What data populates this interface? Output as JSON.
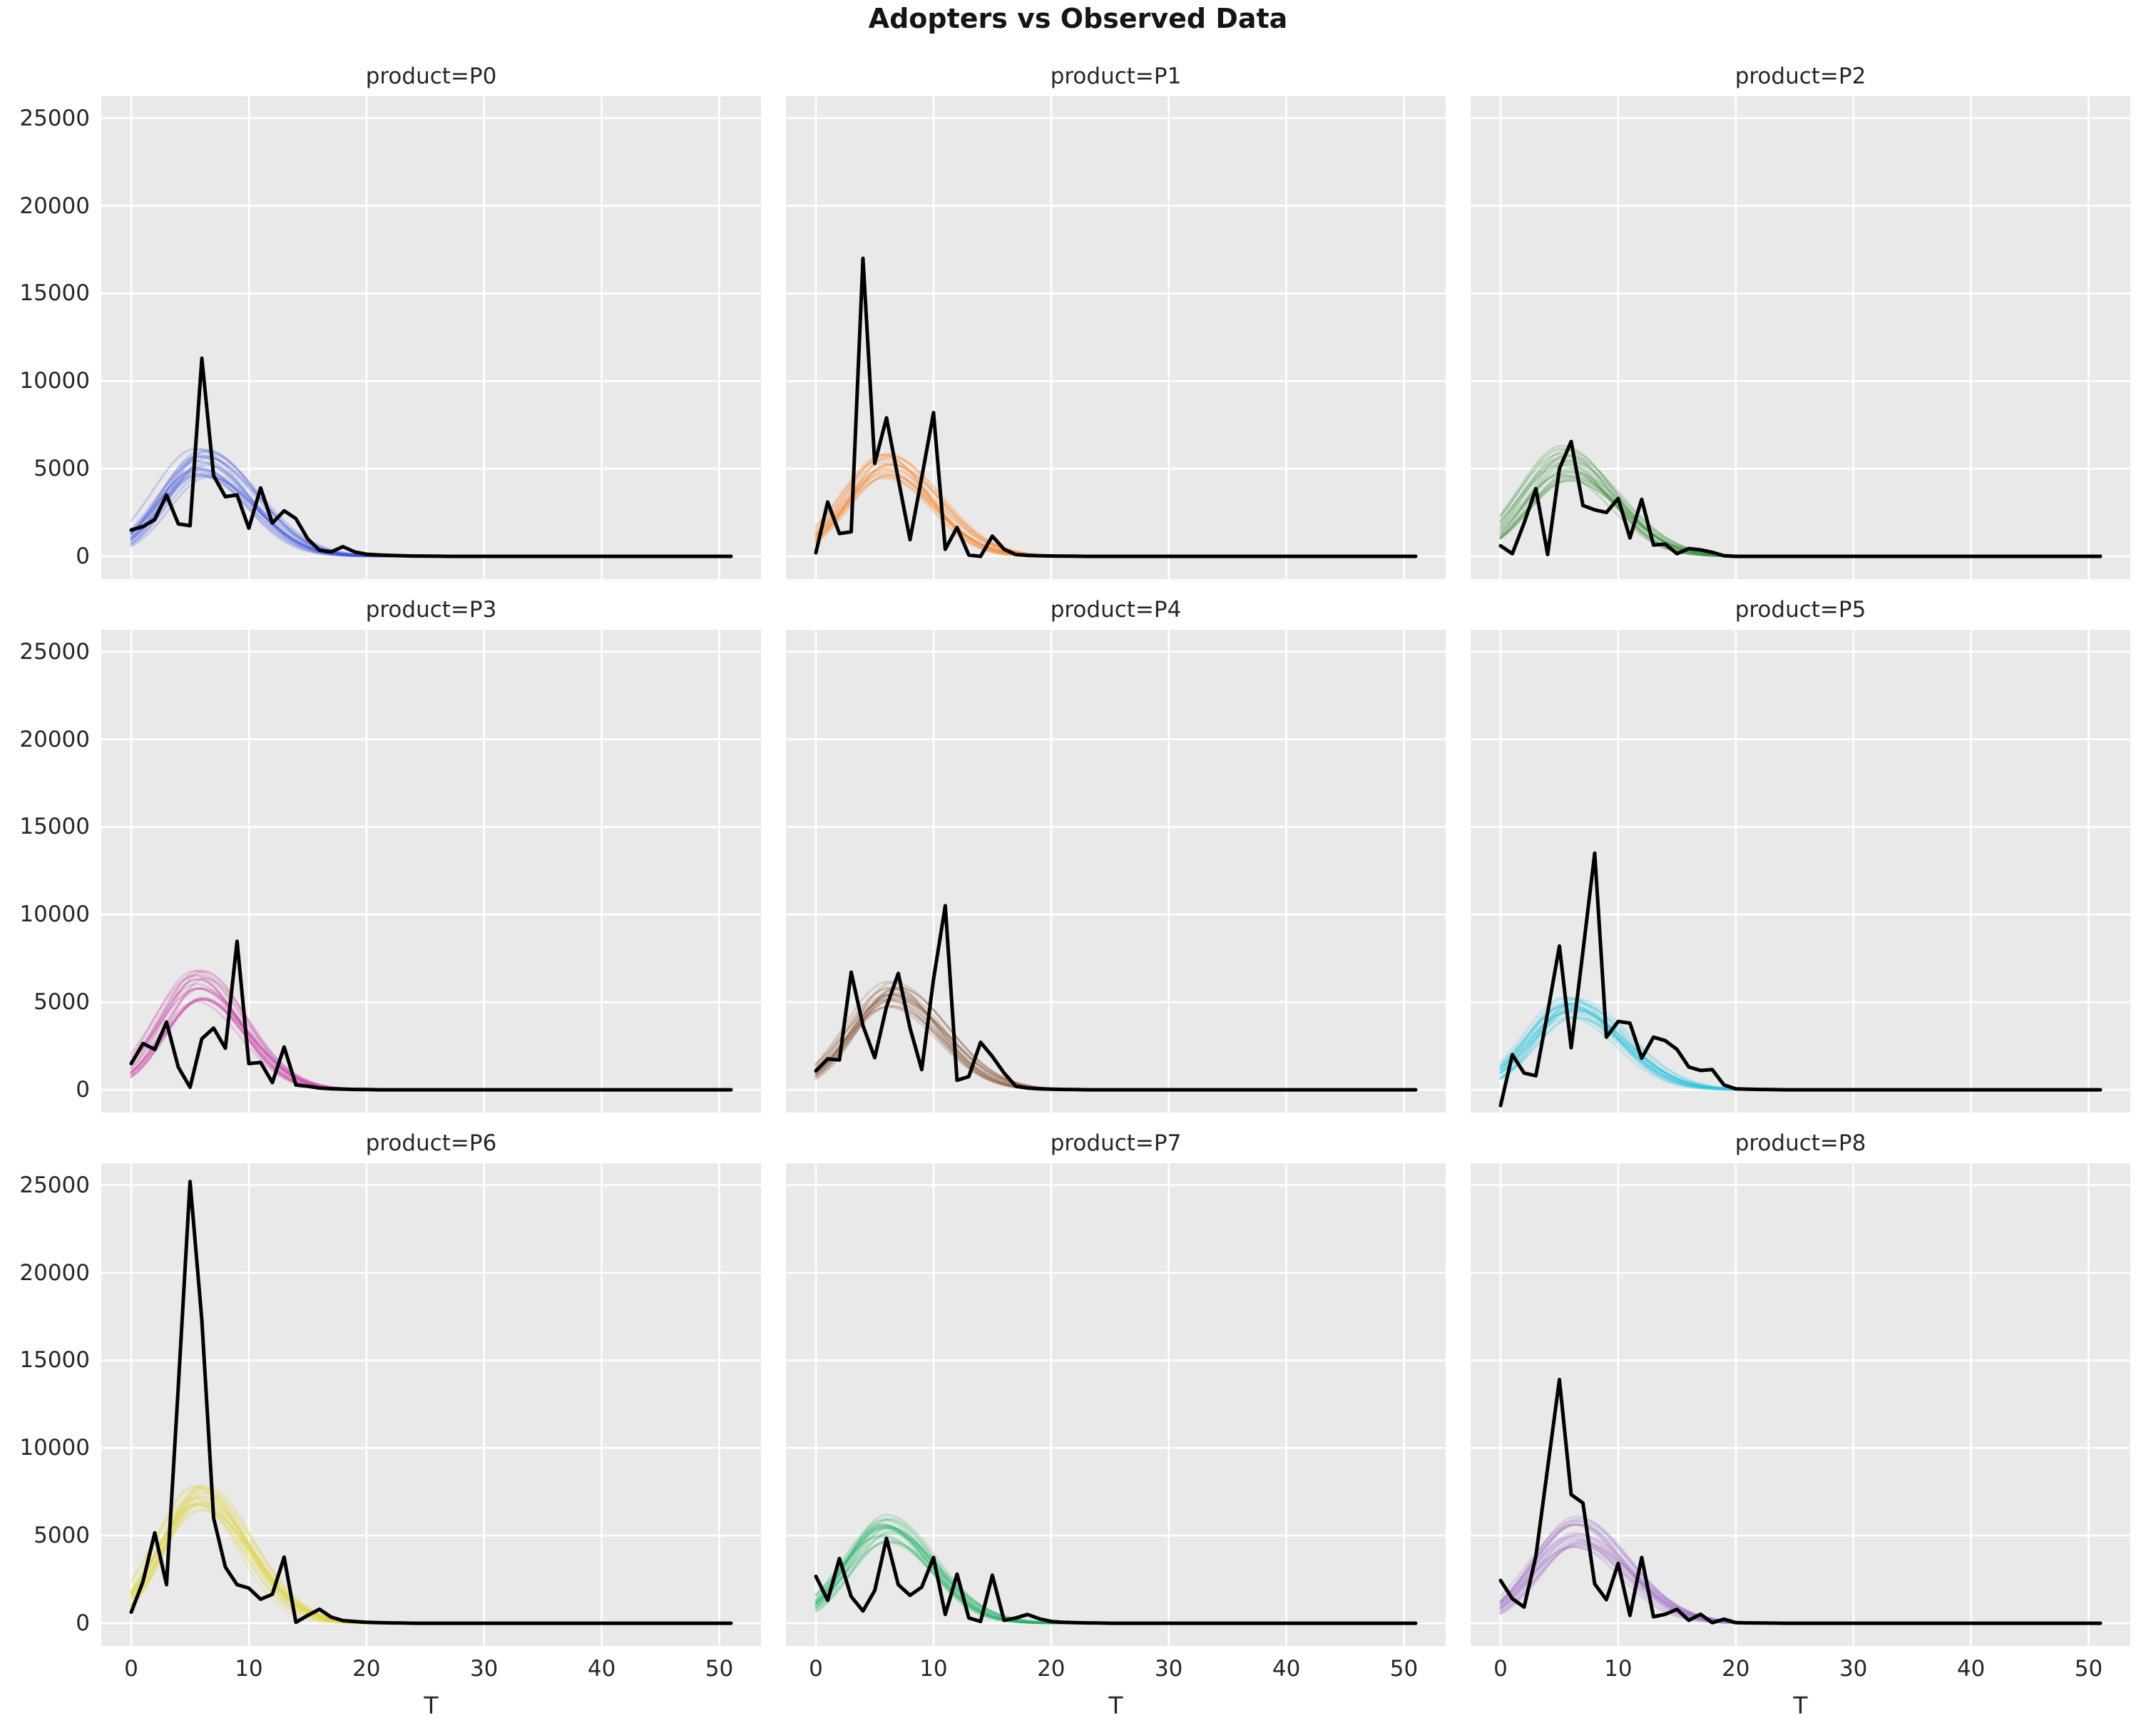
{
  "figure": {
    "title": "Adopters vs Observed Data",
    "xlabel": "T",
    "background_color": "#FFFFFF",
    "axes_background_color": "#E9E9E9",
    "gridline_color": "#FFFFFF",
    "text_color": "#262626",
    "observed_line_color": "#000000"
  },
  "chart_data": {
    "type": "line",
    "layout": "3x3 facet grid, shared x and y axes",
    "title": "Adopters vs Observed Data",
    "xlabel": "T",
    "x_ticks": [
      0,
      10,
      20,
      30,
      40,
      50
    ],
    "y_ticks": [
      0,
      5000,
      10000,
      15000,
      20000,
      25000
    ],
    "xlim": [
      -2.55,
      53.55
    ],
    "ylim": [
      -1300,
      26250
    ],
    "grid": true,
    "legend": false,
    "series_description": "Each panel: ~20 semi-transparent posterior-draw adoption curves (colored) plus one black observed-data line, t = 0..51",
    "panels": [
      {
        "title": "product=P0",
        "color": "#3A50D9",
        "observed": [
          1500,
          1700,
          2100,
          3500,
          1850,
          1750,
          11300,
          4600,
          3400,
          3500,
          1600,
          3900,
          1900,
          2600,
          2150,
          1000,
          350,
          250,
          550,
          250,
          120,
          80,
          50,
          30,
          20,
          10,
          5,
          0
        ],
        "ensemble": {
          "n_lines": 20,
          "peak_low": 4300,
          "peak_high": 6300,
          "peak_t": 6.0,
          "sigma_rise": 3.4,
          "sigma_fall": 4.2
        }
      },
      {
        "title": "product=P1",
        "color": "#F5832A",
        "observed": [
          200,
          3100,
          1300,
          1400,
          17000,
          5300,
          7900,
          4400,
          950,
          4500,
          8200,
          400,
          1650,
          70,
          0,
          1150,
          400,
          100,
          50,
          30,
          20,
          10,
          5,
          0
        ],
        "ensemble": {
          "n_lines": 20,
          "peak_low": 4400,
          "peak_high": 5900,
          "peak_t": 6.0,
          "sigma_rise": 3.4,
          "sigma_fall": 4.0
        }
      },
      {
        "title": "product=P2",
        "color": "#3B8C3B",
        "observed": [
          600,
          150,
          1900,
          3860,
          100,
          5000,
          6550,
          2900,
          2650,
          2500,
          3300,
          1050,
          3250,
          640,
          700,
          150,
          440,
          370,
          230,
          30,
          0,
          0,
          0,
          0
        ],
        "ensemble": {
          "n_lines": 20,
          "peak_low": 4300,
          "peak_high": 6400,
          "peak_t": 5.6,
          "sigma_rise": 3.5,
          "sigma_fall": 4.2
        }
      },
      {
        "title": "product=P3",
        "color": "#C23AA3",
        "observed": [
          1490,
          2640,
          2300,
          3860,
          1290,
          140,
          2910,
          3520,
          2370,
          8470,
          1490,
          1560,
          410,
          2440,
          270,
          200,
          100,
          60,
          40,
          20,
          10,
          0
        ],
        "ensemble": {
          "n_lines": 20,
          "peak_low": 5000,
          "peak_high": 6900,
          "peak_t": 5.8,
          "sigma_rise": 3.3,
          "sigma_fall": 3.9
        }
      },
      {
        "title": "product=P4",
        "color": "#8C5A3F",
        "observed": [
          1080,
          1760,
          1700,
          6710,
          3660,
          1830,
          4740,
          6640,
          3520,
          1150,
          6300,
          10500,
          540,
          750,
          2710,
          1900,
          950,
          200,
          100,
          50,
          30,
          20,
          10,
          0
        ],
        "ensemble": {
          "n_lines": 20,
          "peak_low": 4700,
          "peak_high": 6200,
          "peak_t": 6.5,
          "sigma_rise": 3.6,
          "sigma_fall": 4.3
        }
      },
      {
        "title": "product=P5",
        "color": "#2BC5DE",
        "observed": [
          -900,
          2000,
          950,
          800,
          4400,
          8200,
          2400,
          7900,
          13500,
          3000,
          3900,
          3800,
          1800,
          3000,
          2800,
          2300,
          1300,
          1100,
          1150,
          270,
          50,
          30,
          20,
          10,
          0
        ],
        "ensemble": {
          "n_lines": 20,
          "peak_low": 3900,
          "peak_high": 5400,
          "peak_t": 6.0,
          "sigma_rise": 3.5,
          "sigma_fall": 4.3
        }
      },
      {
        "title": "product=P6",
        "color": "#DFD22E",
        "observed": [
          630,
          2380,
          5160,
          2200,
          13500,
          25200,
          17300,
          6000,
          3200,
          2200,
          2000,
          1370,
          1650,
          3770,
          50,
          440,
          800,
          350,
          150,
          100,
          50,
          30,
          20,
          10,
          0
        ],
        "ensemble": {
          "n_lines": 20,
          "peak_low": 6200,
          "peak_high": 7900,
          "peak_t": 5.8,
          "sigma_rise": 3.3,
          "sigma_fall": 4.0
        }
      },
      {
        "title": "product=P7",
        "color": "#21B366",
        "observed": [
          2670,
          1310,
          3690,
          1520,
          700,
          1860,
          4840,
          2200,
          1590,
          2060,
          3750,
          500,
          2800,
          300,
          100,
          2740,
          160,
          300,
          500,
          250,
          100,
          50,
          30,
          20,
          10,
          0
        ],
        "ensemble": {
          "n_lines": 20,
          "peak_low": 4500,
          "peak_high": 6400,
          "peak_t": 6.0,
          "sigma_rise": 3.4,
          "sigma_fall": 4.1
        }
      },
      {
        "title": "product=P8",
        "color": "#9B6BC3",
        "observed": [
          2440,
          1400,
          920,
          3820,
          8860,
          13900,
          7340,
          6860,
          2240,
          1340,
          3410,
          440,
          3750,
          370,
          510,
          790,
          165,
          510,
          30,
          230,
          30,
          20,
          10,
          5,
          0
        ],
        "ensemble": {
          "n_lines": 20,
          "peak_low": 4300,
          "peak_high": 6200,
          "peak_t": 6.5,
          "sigma_rise": 3.5,
          "sigma_fall": 4.3
        }
      }
    ]
  }
}
